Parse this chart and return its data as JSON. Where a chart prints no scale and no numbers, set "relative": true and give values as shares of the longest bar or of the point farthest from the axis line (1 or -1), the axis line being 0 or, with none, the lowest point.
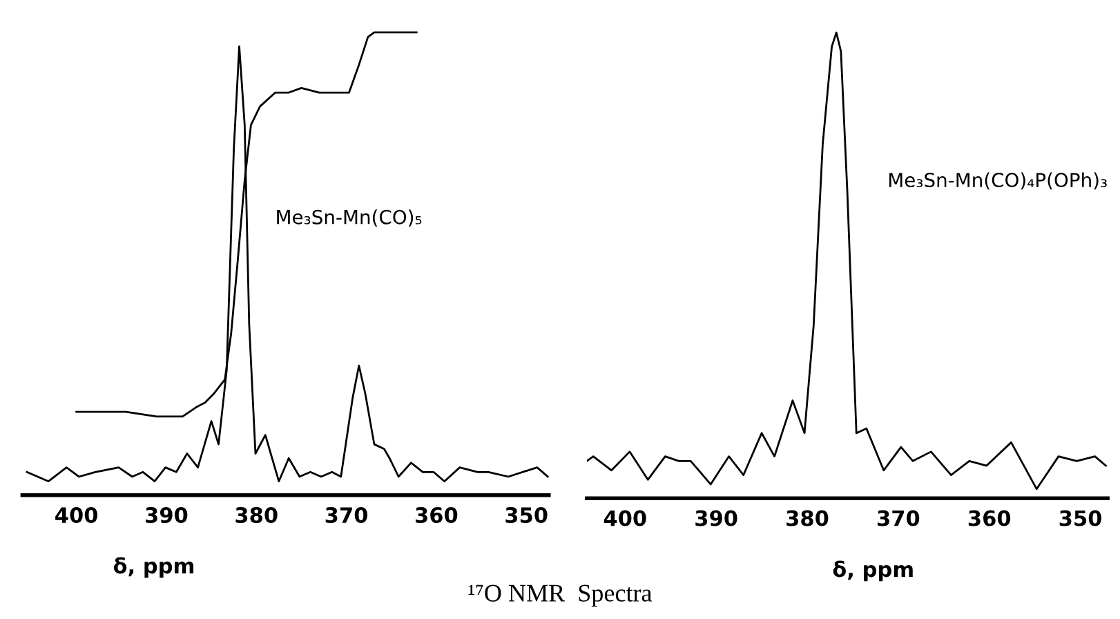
{
  "chart_data": [
    {
      "type": "line",
      "relative": true,
      "xlabel": "δ, ppm",
      "xlim": [
        406,
        347.5
      ],
      "xticks": [
        400,
        390,
        380,
        370,
        360,
        350
      ],
      "grid": false,
      "legend": false,
      "marker": "none",
      "line_style": "solid",
      "annotations": [
        "¹⁷O NMR  Spectra"
      ],
      "series": [
        {
          "name": "Me₃Sn-Mn(CO)₅",
          "color": "#000000",
          "x": [
            405.5,
            403.1,
            401.1,
            399.7,
            397.9,
            395.3,
            393.8,
            392.6,
            391.3,
            390.1,
            388.9,
            387.7,
            386.5,
            385.0,
            384.2,
            383.3,
            382.5,
            381.9,
            381.3,
            380.8,
            380.1,
            379.0,
            378.4,
            377.5,
            376.4,
            375.2,
            374.0,
            372.8,
            371.6,
            370.6,
            369.3,
            368.6,
            367.9,
            366.9,
            365.8,
            365.2,
            364.2,
            362.8,
            361.5,
            360.3,
            359.1,
            357.4,
            355.4,
            354.2,
            352.0,
            348.8,
            347.6
          ],
          "values": [
            0.05,
            0.03,
            0.06,
            0.04,
            0.05,
            0.06,
            0.04,
            0.05,
            0.03,
            0.06,
            0.05,
            0.09,
            0.06,
            0.16,
            0.11,
            0.27,
            0.75,
            0.97,
            0.8,
            0.37,
            0.09,
            0.13,
            0.09,
            0.03,
            0.08,
            0.04,
            0.05,
            0.04,
            0.05,
            0.04,
            0.21,
            0.28,
            0.22,
            0.11,
            0.1,
            0.08,
            0.04,
            0.07,
            0.05,
            0.05,
            0.03,
            0.06,
            0.05,
            0.05,
            0.04,
            0.06,
            0.04
          ]
        },
        {
          "color": "#000000",
          "x": [
            400.0,
            394.5,
            391.1,
            388.2,
            386.7,
            385.7,
            384.7,
            383.5,
            382.8,
            382.1,
            381.3,
            380.6,
            379.6,
            377.9,
            376.4,
            375.0,
            373.0,
            369.7,
            368.6,
            367.6,
            366.9,
            364.7,
            362.2
          ],
          "values": [
            0.18,
            0.18,
            0.17,
            0.17,
            0.19,
            0.2,
            0.22,
            0.25,
            0.35,
            0.5,
            0.68,
            0.8,
            0.84,
            0.87,
            0.87,
            0.88,
            0.87,
            0.87,
            0.93,
            0.99,
            1,
            1.0,
            1.0
          ]
        }
      ]
    },
    {
      "type": "line",
      "relative": true,
      "xlabel": "δ, ppm",
      "xlim": [
        404.2,
        347
      ],
      "xticks": [
        400,
        390,
        380,
        370,
        360,
        350
      ],
      "grid": false,
      "legend": false,
      "marker": "none",
      "line_style": "solid",
      "series": [
        {
          "name": "Me₃Sn-Mn(CO)₄P(OPh)₃",
          "color": "#000000",
          "x": [
            404.2,
            403.5,
            401.5,
            399.5,
            397.5,
            395.6,
            394.1,
            392.8,
            390.6,
            388.6,
            387.0,
            385.0,
            383.6,
            381.6,
            380.3,
            379.3,
            378.3,
            377.3,
            376.8,
            376.3,
            375.6,
            374.6,
            373.5,
            371.6,
            369.7,
            368.4,
            366.4,
            364.2,
            362.2,
            360.3,
            357.6,
            354.8,
            352.4,
            350.4,
            348.4,
            347.2
          ],
          "values": [
            0.08,
            0.09,
            0.06,
            0.1,
            0.04,
            0.09,
            0.08,
            0.08,
            0.03,
            0.09,
            0.05,
            0.14,
            0.09,
            0.21,
            0.14,
            0.37,
            0.76,
            0.97,
            1,
            0.96,
            0.66,
            0.14,
            0.15,
            0.06,
            0.11,
            0.08,
            0.1,
            0.05,
            0.08,
            0.07,
            0.12,
            0.02,
            0.09,
            0.08,
            0.09,
            0.07
          ]
        }
      ]
    }
  ]
}
